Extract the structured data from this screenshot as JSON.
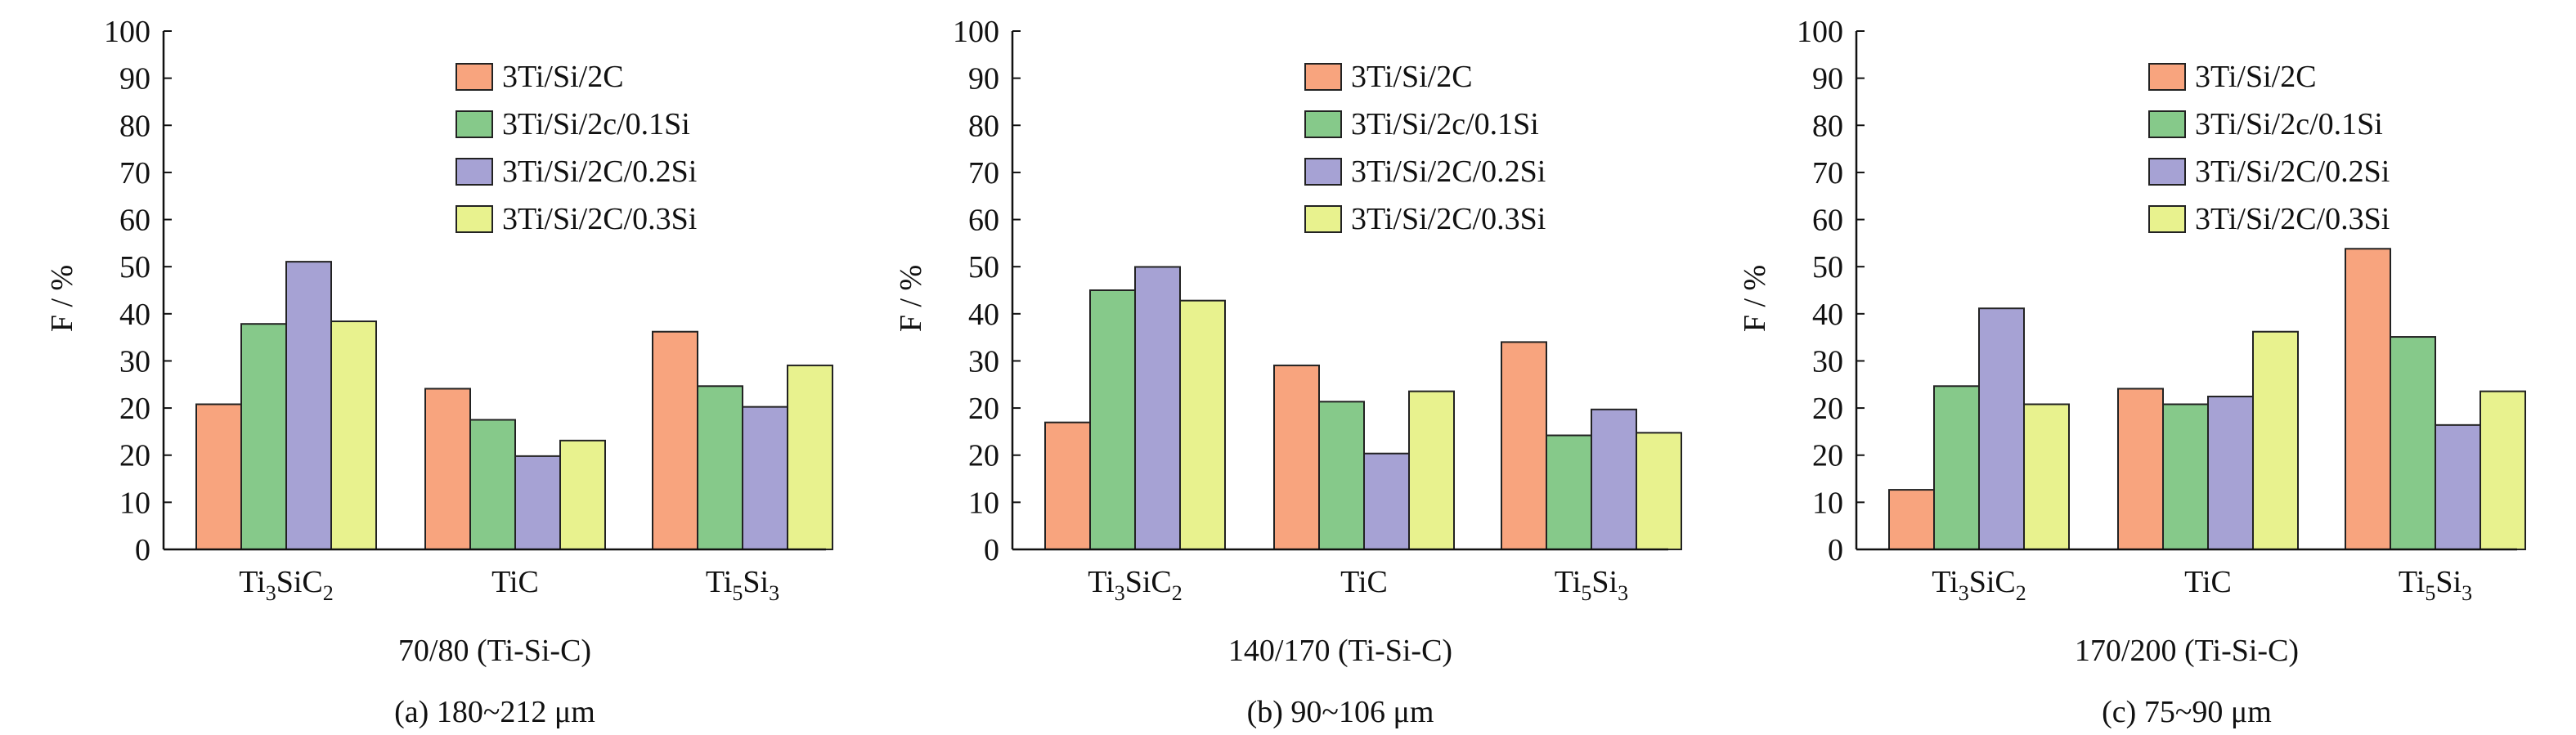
{
  "colors": {
    "3Ti/Si/2C": "#F8A47E",
    "3Ti/Si/2c/0.1Si": "#86C98A",
    "3Ti/Si/2C/0.2Si": "#A6A2D4",
    "3Ti/Si/2C/0.3Si": "#E8F28E",
    "axis": "#111111"
  },
  "chart_data": [
    {
      "type": "bar",
      "ylabel": "F / %",
      "ylim": [
        0,
        100
      ],
      "yticks": [
        "0",
        "10",
        "20",
        "20",
        "30",
        "40",
        "50",
        "60",
        "70",
        "80",
        "90",
        "100"
      ],
      "categories": [
        {
          "base": "Ti",
          "sub1": "3",
          "mid": "SiC",
          "sub2": "2"
        },
        {
          "base": "TiC",
          "sub1": "",
          "mid": "",
          "sub2": ""
        },
        {
          "base": "Ti",
          "sub1": "5",
          "mid": "Si",
          "sub2": "3"
        }
      ],
      "series": [
        {
          "name": "3Ti/Si/2C",
          "values": [
            28,
            31,
            42
          ]
        },
        {
          "name": "3Ti/Si/2c/0.1Si",
          "values": [
            43.5,
            25,
            31.5
          ]
        },
        {
          "name": "3Ti/Si/2C/0.2Si",
          "values": [
            55.5,
            18,
            27.5
          ]
        },
        {
          "name": "3Ti/Si/2C/0.3Si",
          "values": [
            44,
            21,
            35.5
          ]
        }
      ],
      "xlabel": "70/80 (Ti-Si-C)",
      "caption": "(a) 180~212 μm",
      "legend": "top-right"
    },
    {
      "type": "bar",
      "ylabel": "F / %",
      "ylim": [
        0,
        100
      ],
      "yticks": [
        "0",
        "10",
        "20",
        "20",
        "30",
        "40",
        "50",
        "60",
        "70",
        "80",
        "90",
        "100"
      ],
      "categories": [
        {
          "base": "Ti",
          "sub1": "3",
          "mid": "SiC",
          "sub2": "2"
        },
        {
          "base": "TiC",
          "sub1": "",
          "mid": "",
          "sub2": ""
        },
        {
          "base": "Ti",
          "sub1": "5",
          "mid": "Si",
          "sub2": "3"
        }
      ],
      "series": [
        {
          "name": "3Ti/Si/2C",
          "values": [
            24.5,
            35.5,
            40
          ]
        },
        {
          "name": "3Ti/Si/2c/0.1Si",
          "values": [
            50,
            28.5,
            22
          ]
        },
        {
          "name": "3Ti/Si/2C/0.2Si",
          "values": [
            54.5,
            18.5,
            27
          ]
        },
        {
          "name": "3Ti/Si/2C/0.3Si",
          "values": [
            48,
            30.5,
            22.5
          ]
        }
      ],
      "xlabel": "140/170 (Ti-Si-C)",
      "caption": "(b) 90~106 μm",
      "legend": "top-right"
    },
    {
      "type": "bar",
      "ylabel": "F / %",
      "ylim": [
        0,
        100
      ],
      "yticks": [
        "0",
        "10",
        "20",
        "20",
        "30",
        "40",
        "50",
        "60",
        "70",
        "80",
        "90",
        "100"
      ],
      "categories": [
        {
          "base": "Ti",
          "sub1": "3",
          "mid": "SiC",
          "sub2": "2"
        },
        {
          "base": "TiC",
          "sub1": "",
          "mid": "",
          "sub2": ""
        },
        {
          "base": "Ti",
          "sub1": "5",
          "mid": "Si",
          "sub2": "3"
        }
      ],
      "series": [
        {
          "name": "3Ti/Si/2C",
          "values": [
            11.5,
            31,
            58
          ]
        },
        {
          "name": "3Ti/Si/2c/0.1Si",
          "values": [
            31.5,
            28,
            41
          ]
        },
        {
          "name": "3Ti/Si/2C/0.2Si",
          "values": [
            46.5,
            29.5,
            24
          ]
        },
        {
          "name": "3Ti/Si/2C/0.3Si",
          "values": [
            28,
            42,
            30.5
          ]
        }
      ],
      "xlabel": "170/200 (Ti-Si-C)",
      "caption": "(c) 75~90 μm",
      "legend": "top-right"
    }
  ]
}
